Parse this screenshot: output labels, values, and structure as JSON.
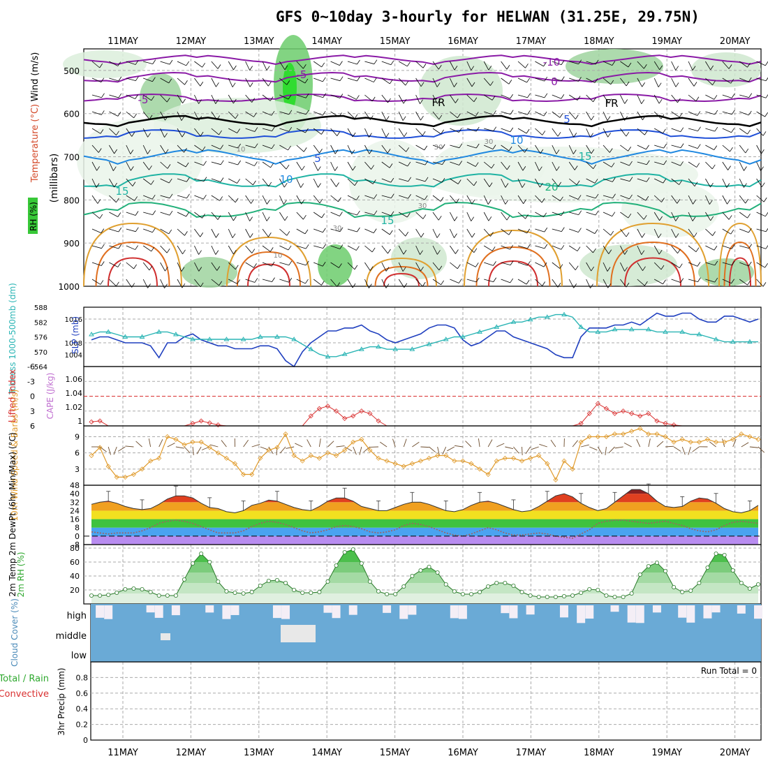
{
  "title": "GFS 0~10day 3-hourly for HELWAN (31.25E, 29.75N)",
  "date_labels": [
    "11MAY",
    "12MAY",
    "13MAY",
    "14MAY",
    "15MAY",
    "16MAY",
    "17MAY",
    "18MAY",
    "19MAY",
    "20MAY"
  ],
  "colors": {
    "rh_green": "#38c838",
    "temp_purple": "#8a1aa6",
    "temp_blue": "#1f4fd8",
    "temp_teal": "#1fb3a3",
    "slp_line": "#1f3fbf",
    "thickness_line": "#2bb5b5",
    "lifted_index": "#d93030",
    "wind_speed": "#e09a2a",
    "cloud": "#6aaad6",
    "rh2m": "#2ea82e"
  },
  "chart_data": [
    {
      "type": "heatmap",
      "name": "upper-air",
      "ylabel_parts": [
        "Wind (m/s)",
        "Temperature (°C)",
        "(millibars)",
        "RH (%)"
      ],
      "yticks": [
        "500",
        "600",
        "700",
        "800",
        "900",
        "1000"
      ],
      "ylim": [
        1000,
        450
      ],
      "isotherm_labels": [
        "-10",
        "-5",
        "0",
        "-5",
        "FR",
        "FR",
        "5",
        "5",
        "10",
        "10",
        "15",
        "15",
        "20",
        "15"
      ],
      "rh_labels": [
        "30",
        "30",
        "10",
        "30",
        "30",
        "10"
      ],
      "legend": "left"
    },
    {
      "type": "line",
      "name": "slp-thickness",
      "ylabel_left": "Tckness 1000-500mb (dm)",
      "ylabel_right": "SLP (mb)",
      "yticks_left": [
        "588",
        "582",
        "576",
        "570",
        "564"
      ],
      "yticks_right": [
        "1016",
        "1008",
        "1004"
      ],
      "series": [
        {
          "name": "SLP (mb)",
          "values": [
            1009,
            1010,
            1010,
            1009,
            1008,
            1008,
            1008,
            1007,
            1003,
            1008,
            1008,
            1010,
            1011,
            1009,
            1008,
            1007,
            1007,
            1006,
            1006,
            1006,
            1007,
            1007,
            1006,
            1002,
            1000,
            1005,
            1008,
            1010,
            1012,
            1012,
            1013,
            1013,
            1014,
            1012,
            1011,
            1009,
            1008,
            1009,
            1010,
            1011,
            1013,
            1014,
            1014,
            1013,
            1009,
            1007,
            1008,
            1010,
            1012,
            1012,
            1010,
            1009,
            1008,
            1007,
            1006,
            1004,
            1003,
            1003,
            1010,
            1013,
            1013,
            1013,
            1014,
            1014,
            1015,
            1014,
            1016,
            1018,
            1017,
            1017,
            1018,
            1018,
            1016,
            1015,
            1015,
            1017,
            1017,
            1016,
            1015,
            1016
          ]
        },
        {
          "name": "Thickness (dm)",
          "values": [
            577,
            578,
            578,
            577,
            576,
            576,
            576,
            577,
            578,
            578,
            577,
            576,
            575,
            575,
            575,
            575,
            575,
            575,
            575,
            575,
            576,
            576,
            576,
            576,
            575,
            573,
            571,
            569,
            568,
            568,
            569,
            570,
            571,
            572,
            572,
            571,
            571,
            571,
            571,
            572,
            573,
            574,
            575,
            576,
            576,
            577,
            578,
            579,
            580,
            581,
            582,
            582,
            583,
            584,
            584,
            585,
            585,
            584,
            580,
            578,
            578,
            578,
            579,
            579,
            579,
            579,
            579,
            578,
            578,
            578,
            578,
            577,
            577,
            576,
            575,
            574,
            574,
            574,
            574,
            574
          ]
        }
      ],
      "legend": "none"
    },
    {
      "type": "line",
      "name": "lifted-index",
      "ylabel_left": "Lifted Index",
      "ylabel_right": "CAPE (J/kg)",
      "yticks_left": [
        "-6",
        "-3",
        "0",
        "3",
        "6"
      ],
      "yticks_right": [
        "1.06",
        "1.04",
        "1.02",
        "1"
      ],
      "ylim": [
        6,
        -6
      ],
      "series": [
        {
          "name": "Lifted Index",
          "values": [
            5.2,
            5.0,
            6,
            6,
            6,
            6,
            6,
            6,
            6,
            6,
            6,
            6,
            5.5,
            5.0,
            5.4,
            5.8,
            6,
            6,
            6,
            6,
            6,
            6,
            6,
            6,
            6,
            6,
            4.0,
            2.5,
            2.0,
            3.0,
            4.5,
            4.0,
            3.0,
            3.5,
            5.0,
            6,
            6,
            6,
            6,
            6,
            6,
            6,
            6,
            6,
            6,
            6,
            6,
            6,
            6,
            6,
            6,
            6,
            6,
            6,
            6,
            6,
            6,
            6,
            5.5,
            3.5,
            1.5,
            2.5,
            3.5,
            3.0,
            3.5,
            4.0,
            3.5,
            5.0,
            5.5,
            5.8,
            6,
            6,
            6,
            6,
            6,
            6,
            6,
            6,
            6,
            6
          ]
        }
      ],
      "legend": "none"
    },
    {
      "type": "line",
      "name": "wind-10m",
      "ylabel": "10m Wind Speed & Barbs (m/s)",
      "yticks": [
        "9",
        "6",
        "3"
      ],
      "ylim": [
        0,
        11
      ],
      "series": [
        {
          "name": "Speed (m/s)",
          "values": [
            5.5,
            7.0,
            3.5,
            1.5,
            1.5,
            2.0,
            3.0,
            4.5,
            5.0,
            9.0,
            8.5,
            7.5,
            8.0,
            8.0,
            7.0,
            6.0,
            5.0,
            4.0,
            2.0,
            2.0,
            5.0,
            6.5,
            7.0,
            9.5,
            5.5,
            4.5,
            5.5,
            5.0,
            6.0,
            5.5,
            6.5,
            8.0,
            8.5,
            6.5,
            5.0,
            4.5,
            4.0,
            3.5,
            4.0,
            4.5,
            5.0,
            5.5,
            5.5,
            4.5,
            4.5,
            4.0,
            3.0,
            2.0,
            4.5,
            5.0,
            5.0,
            4.5,
            5.0,
            5.5,
            4.0,
            1.0,
            4.5,
            3.0,
            8.0,
            9.0,
            9.0,
            9.0,
            9.5,
            9.5,
            10.0,
            10.5,
            9.5,
            9.5,
            9.0,
            8.0,
            8.5,
            8.0,
            8.0,
            8.5,
            8.0,
            8.0,
            8.5,
            9.5,
            9.0,
            8.5
          ]
        }
      ],
      "legend": "none"
    },
    {
      "type": "area",
      "name": "temp-2m",
      "ylabel": "2m Temp 2m DewPt (6hr Min/Max) (°C)",
      "yticks": [
        "48",
        "40",
        "32",
        "24",
        "16",
        "8",
        "0",
        "-8"
      ],
      "ylim": [
        -8,
        48
      ],
      "series": [
        {
          "name": "2m Temp",
          "values": [
            30,
            32,
            33,
            31,
            28,
            26,
            25,
            26,
            30,
            35,
            38,
            38,
            36,
            31,
            27,
            26,
            23,
            22,
            24,
            29,
            31,
            34,
            33,
            30,
            27,
            25,
            24,
            28,
            33,
            36,
            36,
            33,
            28,
            26,
            24,
            24,
            27,
            30,
            32,
            32,
            30,
            27,
            24,
            23,
            25,
            29,
            32,
            33,
            31,
            28,
            25,
            23,
            24,
            28,
            33,
            38,
            40,
            37,
            31,
            27,
            24,
            26,
            32,
            38,
            44,
            44,
            40,
            33,
            28,
            27,
            28,
            33,
            36,
            35,
            31,
            26,
            23,
            22,
            24,
            29
          ]
        },
        {
          "name": "2m DewPt",
          "values": [
            4,
            3,
            2,
            3,
            3,
            3,
            5,
            8,
            12,
            14,
            15,
            14,
            12,
            9,
            6,
            3,
            3,
            3,
            5,
            9,
            12,
            14,
            13,
            11,
            8,
            5,
            3,
            4,
            6,
            9,
            10,
            9,
            7,
            4,
            3,
            4,
            6,
            10,
            12,
            11,
            9,
            6,
            3,
            1,
            0,
            2,
            5,
            8,
            6,
            3,
            1,
            1,
            2,
            3,
            2,
            0,
            -1,
            -2,
            2,
            6,
            12,
            14,
            15,
            15,
            14,
            13,
            12,
            13,
            14,
            12,
            10,
            7,
            5,
            4,
            6,
            10,
            13,
            14,
            13,
            12
          ]
        }
      ],
      "legend": "none"
    },
    {
      "type": "area",
      "name": "rh-2m",
      "ylabel": "2m RH (%)",
      "yticks": [
        "80",
        "60",
        "40",
        "20"
      ],
      "ylim": [
        0,
        85
      ],
      "series": [
        {
          "name": "2m RH",
          "values": [
            12,
            12,
            13,
            16,
            21,
            22,
            21,
            17,
            12,
            12,
            12,
            35,
            58,
            72,
            60,
            32,
            18,
            16,
            15,
            17,
            26,
            33,
            34,
            30,
            20,
            16,
            16,
            17,
            32,
            55,
            74,
            78,
            58,
            32,
            18,
            14,
            14,
            25,
            40,
            48,
            53,
            45,
            28,
            18,
            14,
            14,
            17,
            25,
            30,
            30,
            26,
            17,
            12,
            10,
            10,
            10,
            11,
            12,
            16,
            21,
            20,
            12,
            10,
            10,
            15,
            42,
            54,
            59,
            47,
            24,
            17,
            19,
            30,
            52,
            72,
            70,
            48,
            30,
            22,
            28
          ]
        }
      ],
      "legend": "none"
    },
    {
      "type": "table",
      "name": "cloud-cover",
      "ylabel": "Cloud Cover (%)",
      "row_labels": [
        "high",
        "middle",
        "low"
      ],
      "legend": "none"
    },
    {
      "type": "bar",
      "name": "precip",
      "ylabel": "3hr Precip (mm)",
      "ylabel_parts": [
        "Total / Rain",
        "Convective"
      ],
      "yticks": [
        "0.8",
        "0.6",
        "0.4",
        "0.2",
        "0"
      ],
      "ylim": [
        0,
        1
      ],
      "annotation": "Run Total = 0",
      "legend": "none"
    }
  ]
}
